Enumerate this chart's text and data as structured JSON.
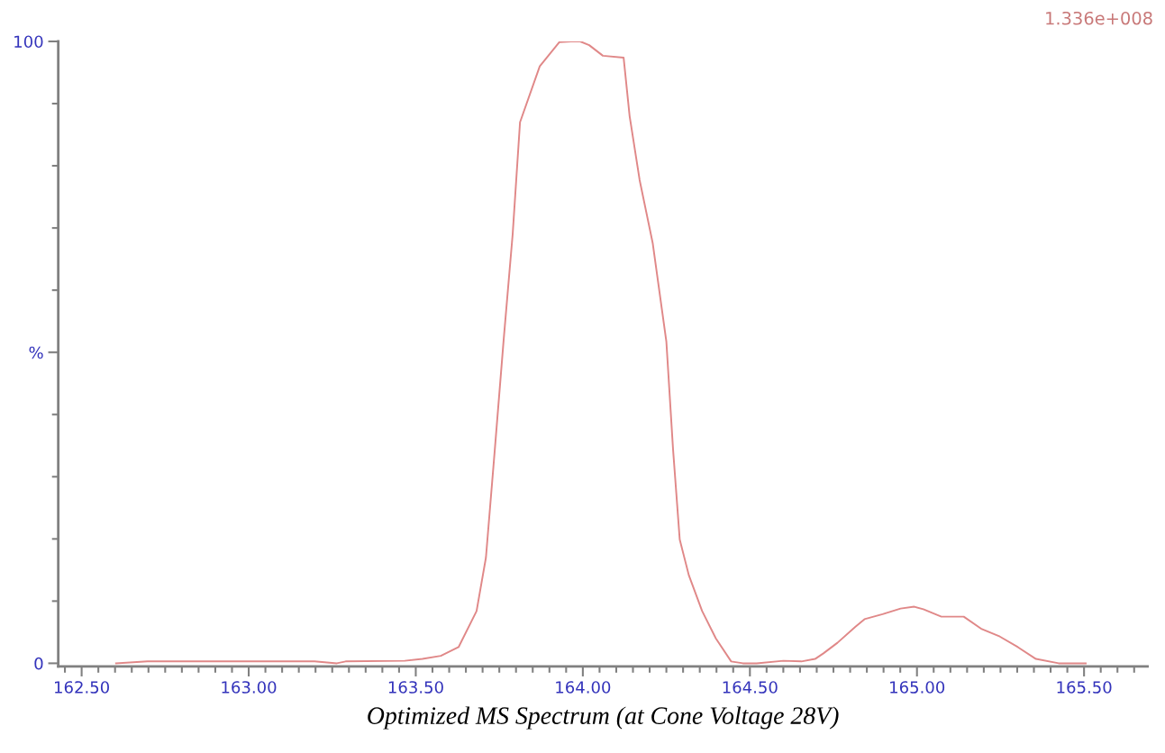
{
  "chart_data": {
    "type": "line",
    "xlabel": "Optimized MS Spectrum (at Cone Voltage 28V)",
    "annotations": [
      "1.336e+008"
    ],
    "x": [
      162.603,
      162.697,
      163.197,
      163.264,
      163.29,
      163.467,
      163.52,
      163.575,
      163.628,
      163.682,
      163.71,
      163.736,
      163.763,
      163.79,
      163.812,
      163.871,
      163.93,
      163.965,
      163.992,
      164.019,
      164.06,
      164.122,
      164.14,
      164.17,
      164.209,
      164.25,
      164.27,
      164.29,
      164.317,
      164.357,
      164.398,
      164.444,
      164.479,
      164.52,
      164.6,
      164.654,
      164.695,
      164.72,
      164.762,
      164.816,
      164.843,
      164.897,
      164.951,
      164.992,
      165.019,
      165.073,
      165.14,
      165.194,
      165.248,
      165.302,
      165.356,
      165.424,
      165.505
    ],
    "series": [
      {
        "color": "#e08888",
        "values": [
          0,
          0.3,
          0.3,
          0,
          0.3,
          0.4,
          0.7,
          1.2,
          2.6,
          8.4,
          17,
          34,
          52,
          69,
          87,
          96,
          99.9,
          100,
          100,
          99.4,
          97.7,
          97.4,
          88,
          77.7,
          67.6,
          51.7,
          34.4,
          19.9,
          14.2,
          8.4,
          4,
          0.3,
          0,
          0,
          0.4,
          0.3,
          0.7,
          1.6,
          3.3,
          5.9,
          7.1,
          7.9,
          8.8,
          9.1,
          8.7,
          7.5,
          7.5,
          5.5,
          4.3,
          2.6,
          0.7,
          0,
          0
        ]
      }
    ],
    "xlim": [
      162.43,
      165.69
    ],
    "ylim": [
      -0.5,
      100
    ],
    "xticks": [
      {
        "value": 162.45,
        "label": null
      },
      {
        "value": 162.5,
        "label": "162.50"
      },
      {
        "value": 162.55,
        "label": null
      },
      {
        "value": 162.6,
        "label": null
      },
      {
        "value": 162.65,
        "label": null
      },
      {
        "value": 162.7,
        "label": null
      },
      {
        "value": 162.75,
        "label": null
      },
      {
        "value": 162.8,
        "label": null
      },
      {
        "value": 162.85,
        "label": null
      },
      {
        "value": 162.9,
        "label": null
      },
      {
        "value": 162.95,
        "label": null
      },
      {
        "value": 163.0,
        "label": "163.00"
      },
      {
        "value": 163.05,
        "label": null
      },
      {
        "value": 163.1,
        "label": null
      },
      {
        "value": 163.15,
        "label": null
      },
      {
        "value": 163.2,
        "label": null
      },
      {
        "value": 163.25,
        "label": null
      },
      {
        "value": 163.3,
        "label": null
      },
      {
        "value": 163.35,
        "label": null
      },
      {
        "value": 163.4,
        "label": null
      },
      {
        "value": 163.45,
        "label": null
      },
      {
        "value": 163.5,
        "label": "163.50"
      },
      {
        "value": 163.55,
        "label": null
      },
      {
        "value": 163.6,
        "label": null
      },
      {
        "value": 163.65,
        "label": null
      },
      {
        "value": 163.7,
        "label": null
      },
      {
        "value": 163.75,
        "label": null
      },
      {
        "value": 163.8,
        "label": null
      },
      {
        "value": 163.85,
        "label": null
      },
      {
        "value": 163.9,
        "label": null
      },
      {
        "value": 163.95,
        "label": null
      },
      {
        "value": 164.0,
        "label": "164.00"
      },
      {
        "value": 164.05,
        "label": null
      },
      {
        "value": 164.1,
        "label": null
      },
      {
        "value": 164.15,
        "label": null
      },
      {
        "value": 164.2,
        "label": null
      },
      {
        "value": 164.25,
        "label": null
      },
      {
        "value": 164.3,
        "label": null
      },
      {
        "value": 164.35,
        "label": null
      },
      {
        "value": 164.4,
        "label": null
      },
      {
        "value": 164.45,
        "label": null
      },
      {
        "value": 164.5,
        "label": "164.50"
      },
      {
        "value": 164.55,
        "label": null
      },
      {
        "value": 164.6,
        "label": null
      },
      {
        "value": 164.65,
        "label": null
      },
      {
        "value": 164.7,
        "label": null
      },
      {
        "value": 164.75,
        "label": null
      },
      {
        "value": 164.8,
        "label": null
      },
      {
        "value": 164.85,
        "label": null
      },
      {
        "value": 164.9,
        "label": null
      },
      {
        "value": 164.95,
        "label": null
      },
      {
        "value": 165.0,
        "label": "165.00"
      },
      {
        "value": 165.05,
        "label": null
      },
      {
        "value": 165.1,
        "label": null
      },
      {
        "value": 165.15,
        "label": null
      },
      {
        "value": 165.2,
        "label": null
      },
      {
        "value": 165.25,
        "label": null
      },
      {
        "value": 165.3,
        "label": null
      },
      {
        "value": 165.35,
        "label": null
      },
      {
        "value": 165.4,
        "label": null
      },
      {
        "value": 165.45,
        "label": null
      },
      {
        "value": 165.5,
        "label": "165.50"
      },
      {
        "value": 165.55,
        "label": null
      },
      {
        "value": 165.6,
        "label": null
      },
      {
        "value": 165.65,
        "label": null
      }
    ],
    "yticks": [
      0,
      {
        "value": 10,
        "label": null
      },
      {
        "value": 20,
        "label": null
      },
      {
        "value": 30,
        "label": null
      },
      {
        "value": 40,
        "label": null
      },
      {
        "value": 50,
        "label": "%"
      },
      {
        "value": 60,
        "label": null
      },
      {
        "value": 70,
        "label": null
      },
      {
        "value": 80,
        "label": null
      },
      {
        "value": 90,
        "label": null
      },
      100
    ],
    "grid": false,
    "legend": false,
    "marker": "none",
    "line_style": "solid"
  }
}
